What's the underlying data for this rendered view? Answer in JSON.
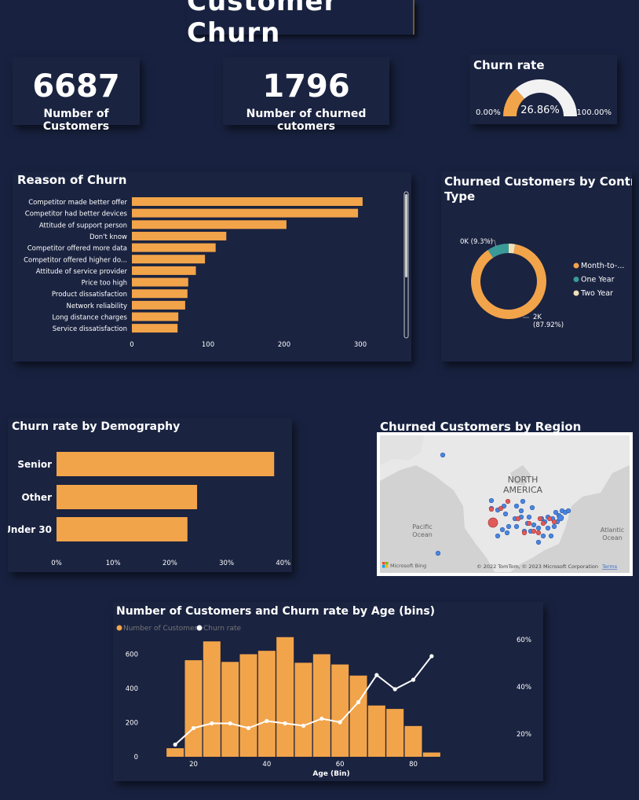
{
  "page_title": "Customer Churn",
  "kpis": {
    "customers": {
      "value": "6687",
      "label": "Number of Customers"
    },
    "churned": {
      "value": "1796",
      "label": "Number of churned cutomers"
    }
  },
  "colors": {
    "orange": "#f2a44a",
    "teal": "#3a9a98",
    "cream": "#f0e0b8",
    "blue_dot": "#4a86e0",
    "red_dot": "#e05a5a",
    "card_bg": "#1a2340"
  },
  "chart_data": [
    {
      "id": "churn_rate_gauge",
      "type": "gauge",
      "title": "Churn rate",
      "value": 26.86,
      "value_label": "26.86%",
      "min_label": "0.00%",
      "max_label": "100.00%",
      "range": [
        0,
        100
      ]
    },
    {
      "id": "reason_of_churn",
      "type": "bar",
      "orientation": "horizontal",
      "title": "Reason of Churn",
      "categories": [
        "Competitor made better offer",
        "Competitor had better devices",
        "Attitude of support person",
        "Don't know",
        "Competitor offered more data",
        "Competitor offered higher do...",
        "Attitude of service provider",
        "Price too high",
        "Product dissatisfaction",
        "Network reliability",
        "Long distance charges",
        "Service dissatisfaction"
      ],
      "values": [
        303,
        297,
        203,
        124,
        110,
        96,
        84,
        74,
        73,
        70,
        61,
        60
      ],
      "xlim": [
        0,
        320
      ],
      "xticks": [
        "0",
        "100",
        "200",
        "300"
      ]
    },
    {
      "id": "contract_type",
      "type": "pie",
      "title": "Churned Customers by Contract Type",
      "labels": [
        "Month-to-...",
        "One Year",
        "Two Year"
      ],
      "values": [
        87.92,
        9.3,
        2.78
      ],
      "callouts": [
        "2K",
        "(87.92%)",
        "0K (9.3%)"
      ]
    },
    {
      "id": "demography",
      "type": "bar",
      "orientation": "horizontal",
      "title": "Churn rate by Demography",
      "categories": [
        "Senior",
        "Other",
        "Under 30"
      ],
      "values": [
        38.4,
        24.8,
        23.1
      ],
      "xlim": [
        0,
        40
      ],
      "xticks": [
        "0%",
        "10%",
        "20%",
        "30%",
        "40%"
      ]
    },
    {
      "id": "region_map",
      "type": "map",
      "title": "Churned Customers by Region",
      "map_labels": [
        "NORTH",
        "AMERICA",
        "Pacific",
        "Ocean",
        "Atlantic",
        "Ocean"
      ],
      "attribution": "© 2022 TomTom, © 2023 Microsoft Corporation",
      "terms": "Terms",
      "brand": "Microsoft Bing"
    },
    {
      "id": "age_bins",
      "type": "combo",
      "title": "Number of Customers and Churn rate by Age (bins)",
      "xlabel": "Age (Bin)",
      "legend": [
        "Number of Customers",
        "Churn rate"
      ],
      "x": [
        15,
        20,
        25,
        30,
        35,
        40,
        45,
        50,
        55,
        60,
        65,
        70,
        75,
        80,
        85
      ],
      "series": [
        {
          "name": "Number of Customers",
          "type": "bar",
          "values": [
            50,
            565,
            675,
            555,
            600,
            620,
            700,
            550,
            600,
            540,
            475,
            300,
            280,
            180,
            25
          ]
        },
        {
          "name": "Churn rate",
          "type": "line",
          "values": [
            15.5,
            22.5,
            24.5,
            24.5,
            22.5,
            25.5,
            24.5,
            23.5,
            26.5,
            25,
            33.5,
            45,
            39,
            43,
            53
          ]
        }
      ],
      "xlim": [
        12.5,
        87.5
      ],
      "ylim_left": [
        0,
        760
      ],
      "ylim_right": [
        10,
        62
      ],
      "xticks": [
        "20",
        "40",
        "60",
        "80"
      ],
      "yticks_left": [
        "0",
        "200",
        "400",
        "600"
      ],
      "yticks_right": [
        "20%",
        "40%",
        "60%"
      ]
    }
  ]
}
